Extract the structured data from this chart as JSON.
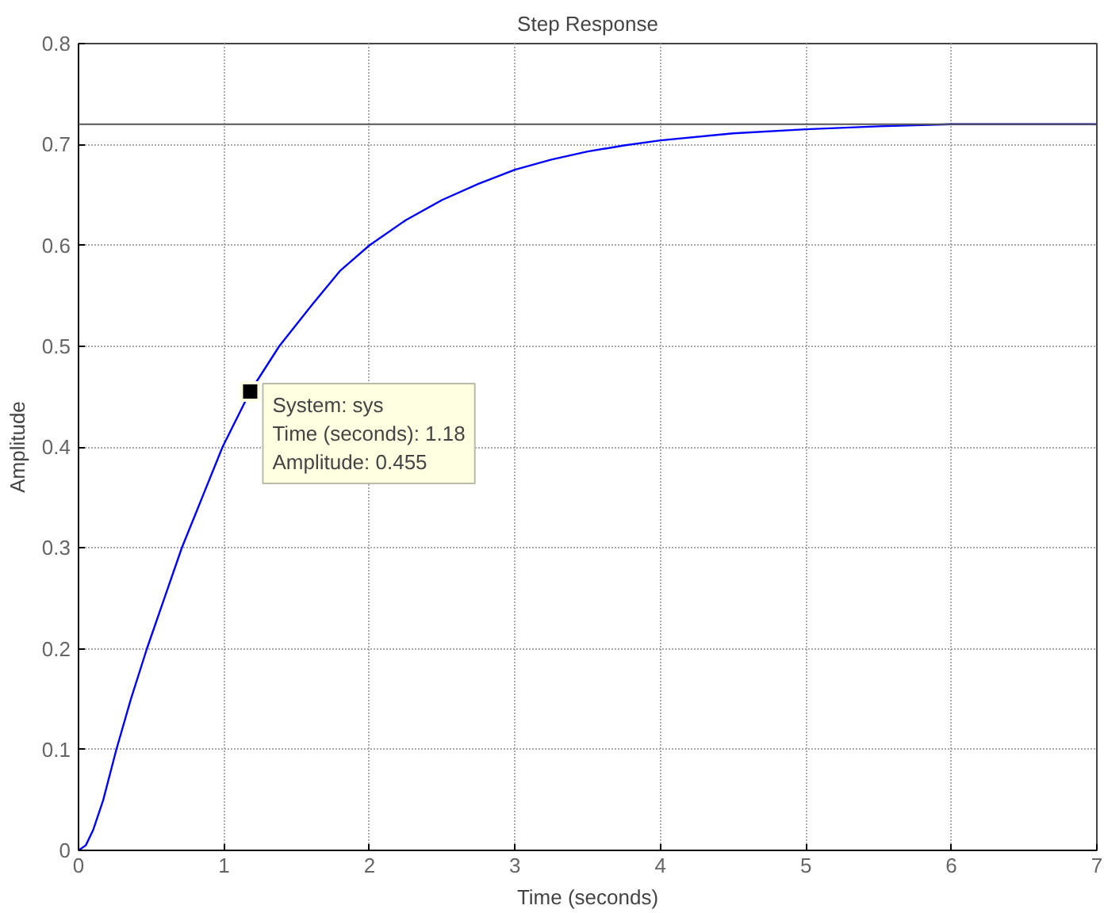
{
  "chart_data": {
    "type": "line",
    "title": "Step Response",
    "xlabel": "Time (seconds)",
    "ylabel": "Amplitude",
    "x": [
      0,
      0.05,
      0.1,
      0.17,
      0.26,
      0.36,
      0.47,
      0.59,
      0.71,
      0.85,
      0.99,
      1.18,
      1.38,
      1.6,
      1.8,
      2.0,
      2.25,
      2.5,
      2.75,
      3.0,
      3.25,
      3.5,
      3.75,
      4.0,
      4.5,
      5.0,
      5.5,
      6.0,
      6.5,
      7.0
    ],
    "series": [
      {
        "color": "#0000ff",
        "values": [
          0,
          0.005,
          0.02,
          0.05,
          0.1,
          0.15,
          0.2,
          0.25,
          0.3,
          0.35,
          0.4,
          0.455,
          0.5,
          0.54,
          0.575,
          0.6,
          0.625,
          0.645,
          0.661,
          0.675,
          0.685,
          0.693,
          0.699,
          0.704,
          0.711,
          0.715,
          0.718,
          0.72,
          0.72,
          0.72
        ]
      }
    ],
    "xlim": [
      0,
      7
    ],
    "ylim": [
      0,
      0.8
    ],
    "xticks": [
      0,
      1,
      2,
      3,
      4,
      5,
      6,
      7
    ],
    "yticks": [
      0,
      0.1,
      0.2,
      0.3,
      0.4,
      0.5,
      0.6,
      0.7,
      0.8
    ],
    "ref_lines": [
      {
        "axis": "y",
        "value": 0.72,
        "color": "#555555"
      }
    ],
    "annotations": [
      {
        "text": "System: sys\nTime (seconds): 1.18\nAmplitude: 0.455",
        "x": 1.18,
        "y": 0.455
      }
    ],
    "grid": true,
    "marker": "none",
    "line_style": "solid"
  }
}
